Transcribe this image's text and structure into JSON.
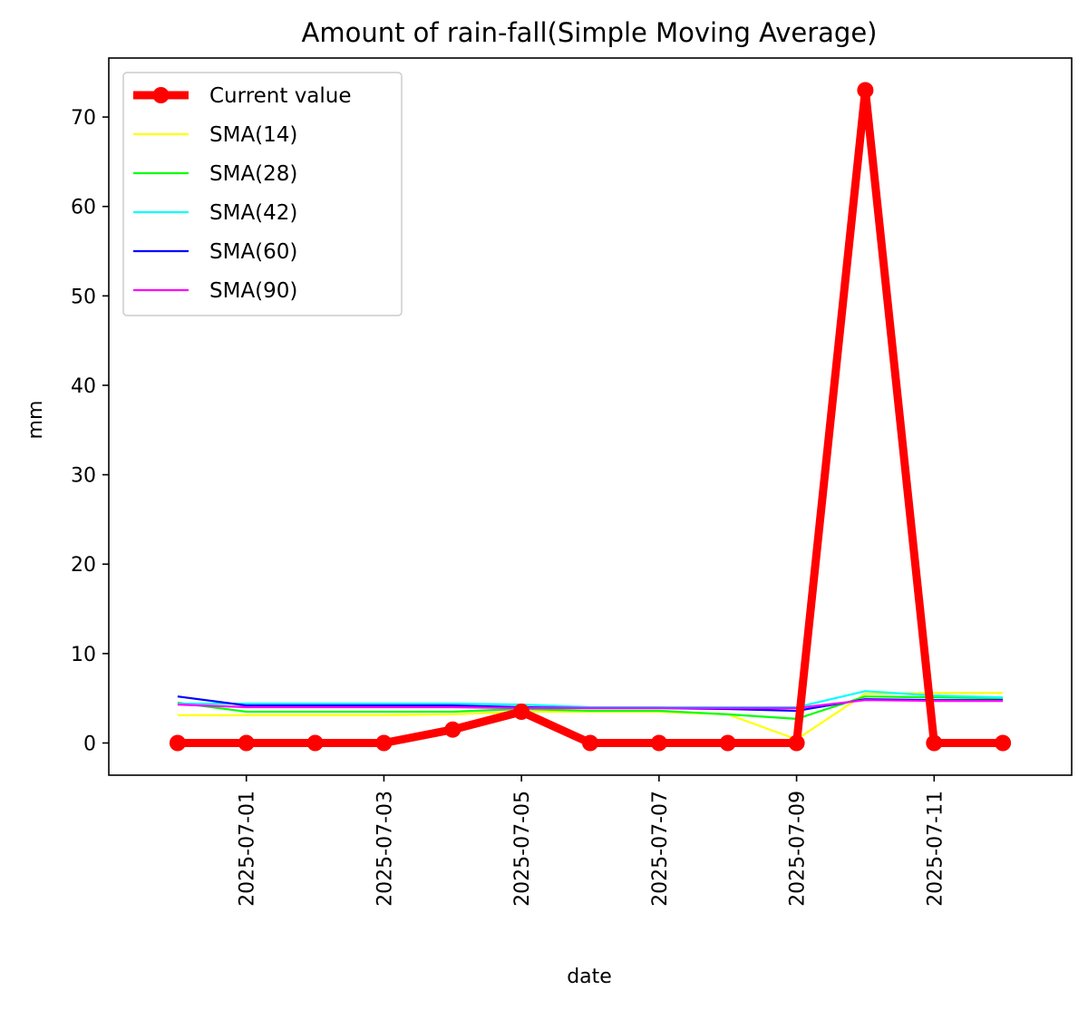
{
  "chart_data": {
    "type": "line",
    "title": "Amount of rain-fall(Simple Moving Average)",
    "xlabel": "date",
    "ylabel": "mm",
    "x": [
      "2025-06-30",
      "2025-07-01",
      "2025-07-02",
      "2025-07-03",
      "2025-07-04",
      "2025-07-05",
      "2025-07-06",
      "2025-07-07",
      "2025-07-08",
      "2025-07-09",
      "2025-07-10",
      "2025-07-11",
      "2025-07-12"
    ],
    "x_ticks": [
      "2025-07-01",
      "2025-07-03",
      "2025-07-05",
      "2025-07-07",
      "2025-07-09",
      "2025-07-11"
    ],
    "y_ticks": [
      0,
      10,
      20,
      30,
      40,
      50,
      60,
      70
    ],
    "xlim": [
      "2025-06-29",
      "2025-07-13"
    ],
    "ylim": [
      -3.6,
      76.6
    ],
    "grid": false,
    "legend_position": "upper-left",
    "series": [
      {
        "name": "Current value",
        "color": "#ff0000",
        "marker": "circle",
        "values": [
          0,
          0,
          0,
          0,
          1.5,
          3.5,
          0,
          0,
          0,
          0,
          73,
          0,
          0
        ]
      },
      {
        "name": "SMA(14)",
        "color": "#ffff00",
        "values": [
          3.1,
          3.1,
          3.1,
          3.1,
          3.2,
          3.5,
          3.5,
          3.5,
          3.2,
          0.4,
          5.5,
          5.6,
          5.6
        ]
      },
      {
        "name": "SMA(28)",
        "color": "#00ff00",
        "values": [
          4.5,
          3.5,
          3.5,
          3.5,
          3.5,
          3.8,
          3.6,
          3.6,
          3.2,
          2.7,
          5.2,
          5.1,
          5.0
        ]
      },
      {
        "name": "SMA(42)",
        "color": "#00ffff",
        "values": [
          4.4,
          4.4,
          4.4,
          4.4,
          4.4,
          4.3,
          4.0,
          4.0,
          4.0,
          4.0,
          5.8,
          5.3,
          5.1
        ]
      },
      {
        "name": "SMA(60)",
        "color": "#0000ff",
        "values": [
          5.2,
          4.2,
          4.2,
          4.2,
          4.2,
          4.0,
          3.9,
          3.9,
          3.8,
          3.6,
          4.9,
          4.8,
          4.8
        ]
      },
      {
        "name": "SMA(90)",
        "color": "#ff00ff",
        "values": [
          4.3,
          4.0,
          4.0,
          4.0,
          4.0,
          3.9,
          3.9,
          3.9,
          3.9,
          3.9,
          4.8,
          4.7,
          4.7
        ]
      }
    ]
  }
}
